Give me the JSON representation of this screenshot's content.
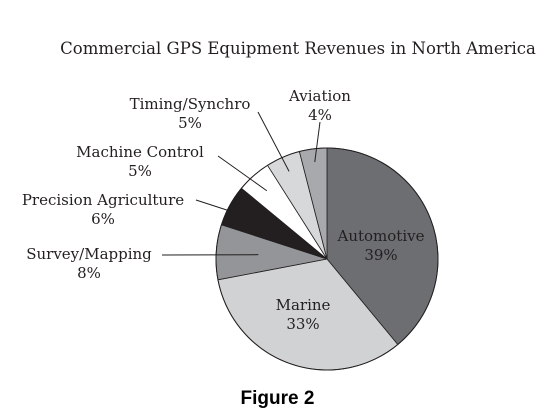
{
  "chart_data": {
    "type": "pie",
    "title": "Commercial GPS Equipment Revenues in North America",
    "unit": "%",
    "slices": [
      {
        "label": "Automotive",
        "value": 39,
        "value_label": "39%",
        "color": "#6d6e71"
      },
      {
        "label": "Marine",
        "value": 33,
        "value_label": "33%",
        "color": "#d1d2d4"
      },
      {
        "label": "Survey/Mapping",
        "value": 8,
        "value_label": "8%",
        "color": "#939598"
      },
      {
        "label": "Precision Agriculture",
        "value": 6,
        "value_label": "6%",
        "color": "#231f20"
      },
      {
        "label": "Machine Control",
        "value": 5,
        "value_label": "5%",
        "color": "#ffffff"
      },
      {
        "label": "Timing/Synchro",
        "value": 5,
        "value_label": "5%",
        "color": "#d7d8da"
      },
      {
        "label": "Aviation",
        "value": 4,
        "value_label": "4%",
        "color": "#a7a9ac"
      }
    ]
  },
  "figure_caption": "Figure 2"
}
